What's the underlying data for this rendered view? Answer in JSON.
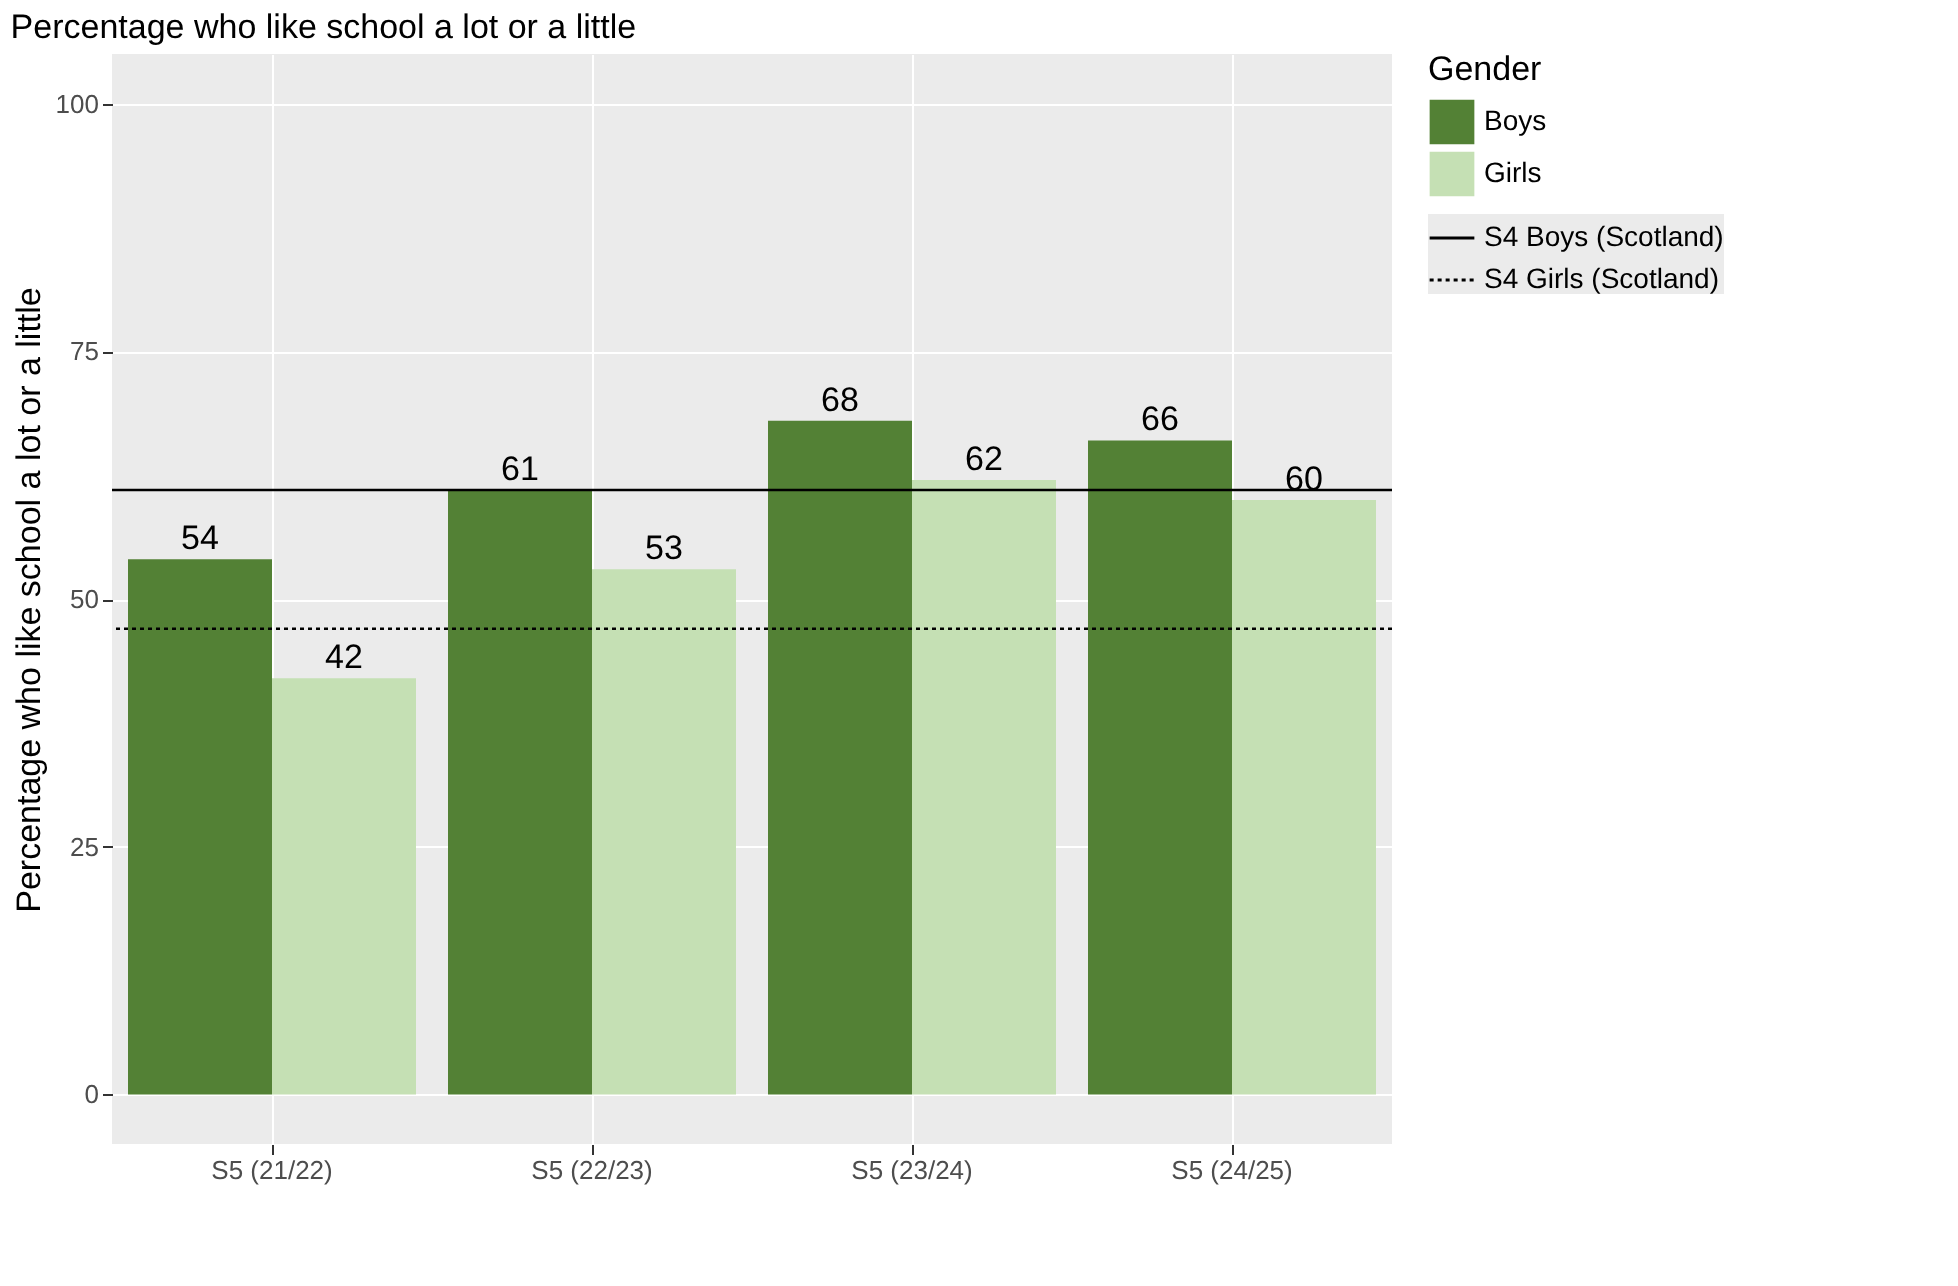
{
  "chart_data": {
    "type": "bar",
    "title": "Percentage who like school a lot or a little",
    "ylabel": "Percentage who like school a lot or a little",
    "legend_title": "Gender",
    "categories": [
      "S5 (21/22)",
      "S5 (22/23)",
      "S5 (23/24)",
      "S5 (24/25)"
    ],
    "series": [
      {
        "name": "Boys",
        "color": "#538135",
        "values": [
          54,
          61,
          68,
          66
        ]
      },
      {
        "name": "Girls",
        "color": "#c5e0b4",
        "values": [
          42,
          53,
          62,
          60
        ]
      }
    ],
    "ylim": [
      -5,
      105
    ],
    "yticks": [
      0,
      25,
      50,
      75,
      100
    ],
    "grid": true,
    "legend": "right",
    "data_labels": true,
    "ref_lines": [
      {
        "axis": "y",
        "value": 61,
        "label": "S4 Boys (Scotland)",
        "color": "#000000",
        "line_style": "solid"
      },
      {
        "axis": "y",
        "value": 47,
        "label": "S4 Girls (Scotland)",
        "color": "#000000",
        "line_style": "dotted"
      }
    ]
  }
}
